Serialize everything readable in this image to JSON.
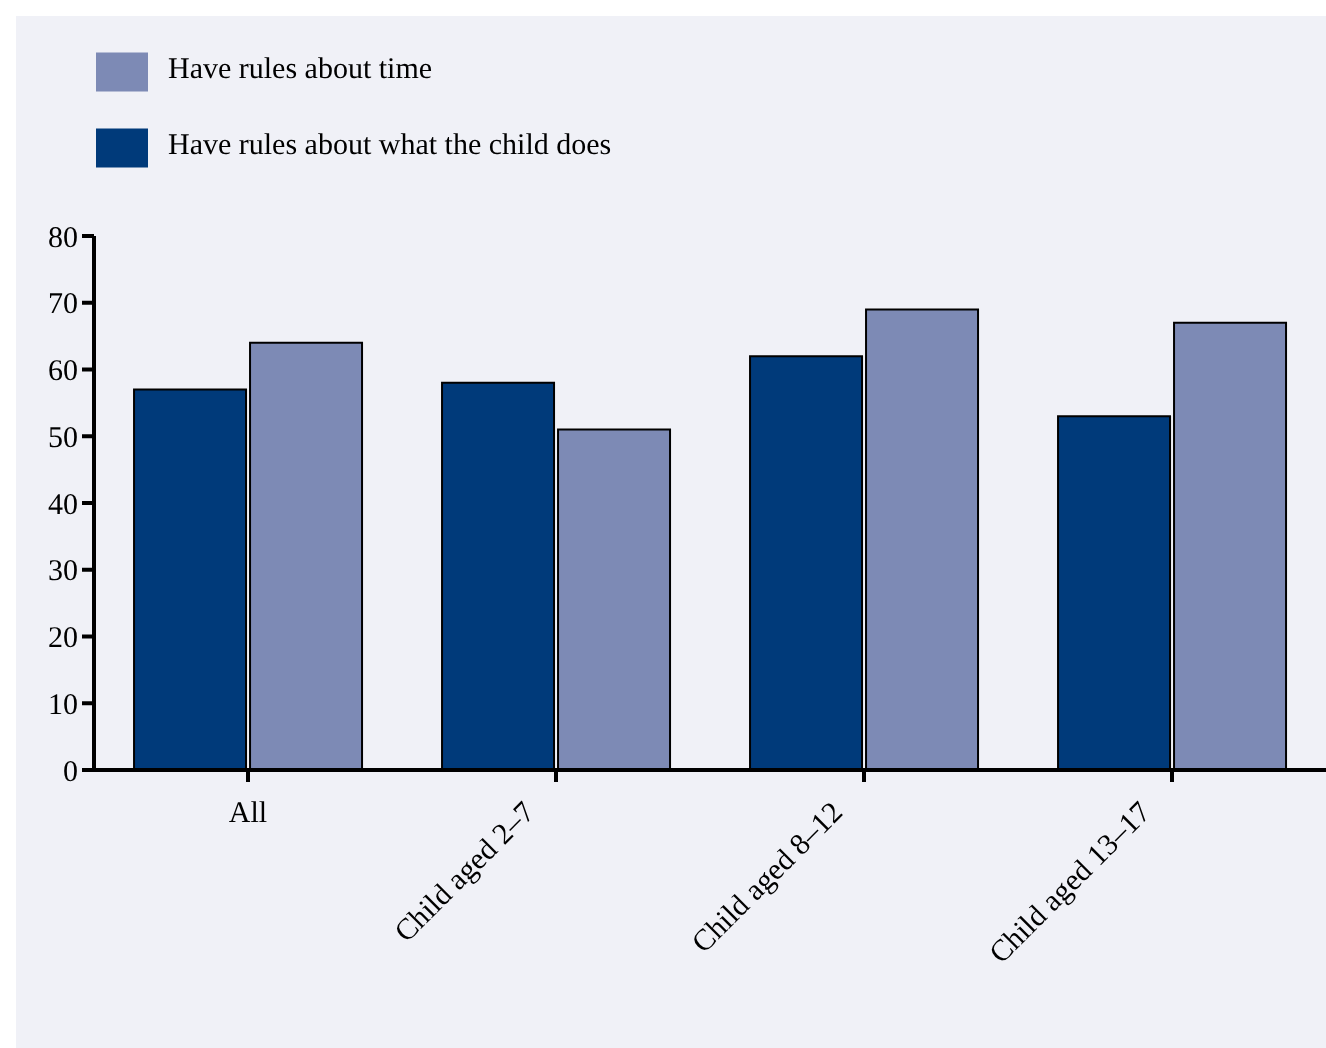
{
  "chart_data": {
    "type": "bar",
    "categories": [
      "All",
      "Child aged 2–7",
      "Child aged 8–12",
      "Child aged 13–17"
    ],
    "series": [
      {
        "name": "Have rules about what the child does",
        "color": "#003a7a",
        "values": [
          57,
          58,
          62,
          53
        ]
      },
      {
        "name": "Have rules about time",
        "color": "#7d8ab5",
        "values": [
          64,
          51,
          69,
          67
        ]
      }
    ],
    "ylim": [
      0,
      80
    ],
    "yticks": [
      0,
      10,
      20,
      30,
      40,
      50,
      60,
      70,
      80
    ],
    "legend": "top left"
  }
}
